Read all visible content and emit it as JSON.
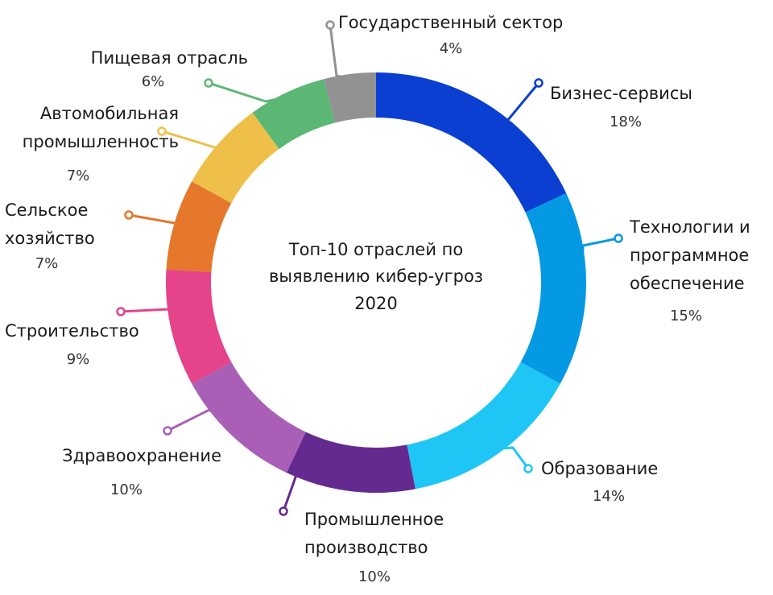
{
  "chart_data": {
    "type": "pie",
    "donut": true,
    "title_lines": [
      "Топ-10 отраслей по",
      "выявлению кибер-угроз",
      "2020"
    ],
    "slices": [
      {
        "name": "Бизнес-сервисы",
        "name_lines": [
          "Бизнес-сервисы"
        ],
        "value": 18,
        "label": "18%",
        "color": "#0b3fd1"
      },
      {
        "name": "Технологии и программное обеспечение",
        "name_lines": [
          "Технологии и",
          "программное",
          "обеспечение"
        ],
        "value": 15,
        "label": "15%",
        "color": "#0598e3"
      },
      {
        "name": "Образование",
        "name_lines": [
          "Образование"
        ],
        "value": 14,
        "label": "14%",
        "color": "#1fc6f5"
      },
      {
        "name": "Промышленное производство",
        "name_lines": [
          "Промышленное",
          "производство"
        ],
        "value": 10,
        "label": "10%",
        "color": "#652a8f"
      },
      {
        "name": "Здравоохранение",
        "name_lines": [
          "Здравоохранение"
        ],
        "value": 10,
        "label": "10%",
        "color": "#a95fb6"
      },
      {
        "name": "Строительство",
        "name_lines": [
          "Строительство"
        ],
        "value": 9,
        "label": "9%",
        "color": "#e5448a"
      },
      {
        "name": "Сельское хозяйство",
        "name_lines": [
          "Сельское",
          "хозяйство"
        ],
        "value": 7,
        "label": "7%",
        "color": "#e5782a"
      },
      {
        "name": "Автомобильная промышленность",
        "name_lines": [
          "Автомобильная",
          "промышленность"
        ],
        "value": 7,
        "label": "7%",
        "color": "#eec04a"
      },
      {
        "name": "Пищевая отрасль",
        "name_lines": [
          "Пищевая отрасль"
        ],
        "value": 6,
        "label": "6%",
        "color": "#5bb774"
      },
      {
        "name": "Государственный сектор",
        "name_lines": [
          "Государственный сектор"
        ],
        "value": 4,
        "label": "4%",
        "color": "#929292"
      }
    ]
  }
}
